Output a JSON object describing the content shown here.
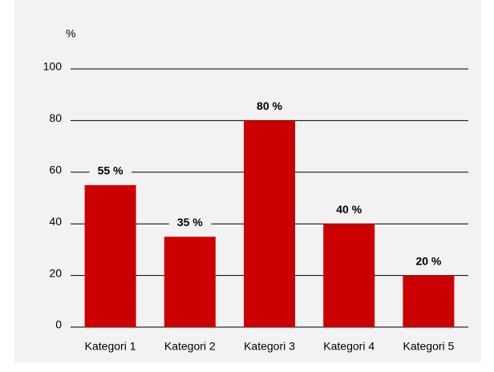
{
  "chart_data": {
    "type": "bar",
    "y_axis_label": "%",
    "categories": [
      "Kategori 1",
      "Kategori 2",
      "Kategori 3",
      "Kategori 4",
      "Kategori 5"
    ],
    "values": [
      55,
      35,
      80,
      40,
      20
    ],
    "value_labels": [
      "55 %",
      "35 %",
      "80 %",
      "40 %",
      "20 %"
    ],
    "color": "#cc0000",
    "ylim": [
      0,
      100
    ],
    "yticks": [
      0,
      20,
      40,
      60,
      80,
      100
    ],
    "grid": true
  }
}
